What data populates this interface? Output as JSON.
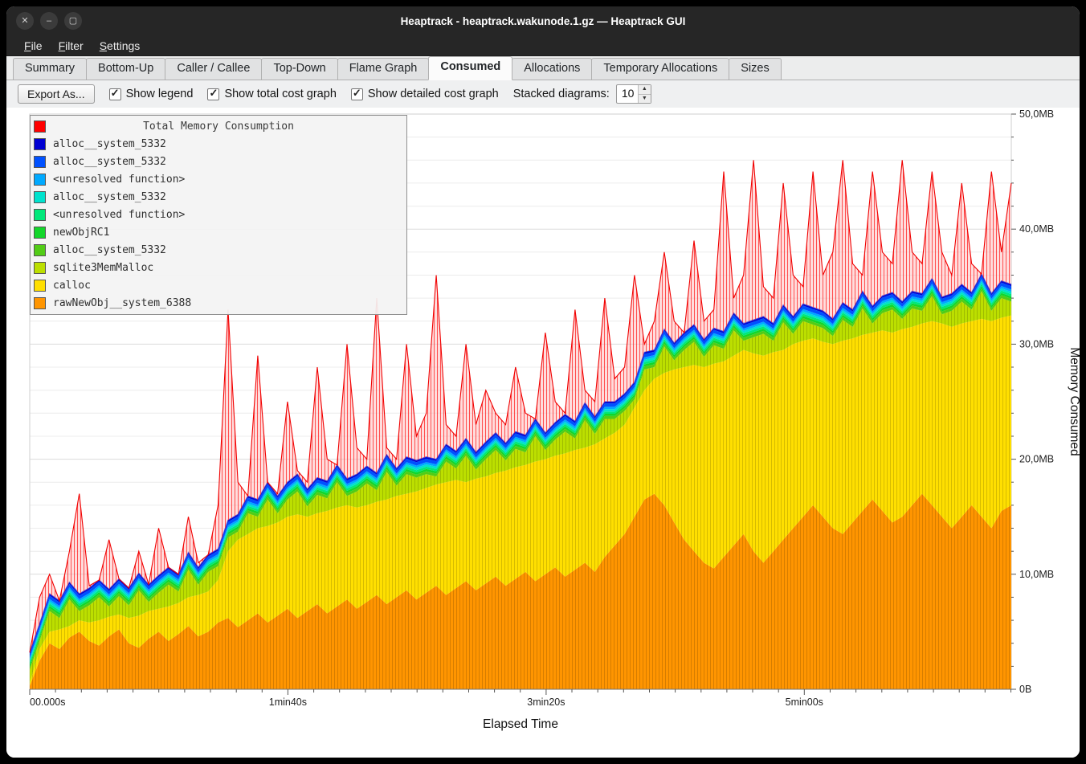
{
  "window": {
    "title": "Heaptrack - heaptrack.wakunode.1.gz — Heaptrack GUI",
    "buttons": [
      {
        "name": "close",
        "glyph": "✕"
      },
      {
        "name": "minimize",
        "glyph": "–"
      },
      {
        "name": "maximize",
        "glyph": "▢"
      }
    ]
  },
  "menu": {
    "items": [
      "File",
      "Filter",
      "Settings"
    ]
  },
  "tabs": {
    "items": [
      "Summary",
      "Bottom-Up",
      "Caller / Callee",
      "Top-Down",
      "Flame Graph",
      "Consumed",
      "Allocations",
      "Temporary Allocations",
      "Sizes"
    ],
    "active": "Consumed"
  },
  "toolbar": {
    "export_button": "Export As...",
    "checkboxes": [
      {
        "label": "Show legend",
        "checked": true
      },
      {
        "label": "Show total cost graph",
        "checked": true
      },
      {
        "label": "Show detailed cost graph",
        "checked": true
      }
    ],
    "check_glyph": "✓",
    "stacked_label": "Stacked diagrams:",
    "stacked_value": "10",
    "spin_up_glyph": "▲",
    "spin_down_glyph": "▼"
  },
  "legend": {
    "title": "Total Memory Consumption",
    "title_color": "#ff0000",
    "items": [
      {
        "label": "alloc__system_5332",
        "color": "#0000d2"
      },
      {
        "label": "alloc__system_5332",
        "color": "#0051ff"
      },
      {
        "label": "<unresolved function>",
        "color": "#00a9ff"
      },
      {
        "label": "alloc__system_5332",
        "color": "#00e2cd"
      },
      {
        "label": "<unresolved function>",
        "color": "#00e87a"
      },
      {
        "label": "newObjRC1",
        "color": "#12d62a"
      },
      {
        "label": "alloc__system_5332",
        "color": "#52cc16"
      },
      {
        "label": "sqlite3MemMalloc",
        "color": "#bcdf00"
      },
      {
        "label": "calloc",
        "color": "#ffdf00"
      },
      {
        "label": "rawNewObj__system_6388",
        "color": "#ff9500"
      }
    ]
  },
  "axes": {
    "y_label": "Memory Consumed",
    "x_label": "Elapsed Time"
  },
  "chart_data": {
    "type": "area",
    "title": "Total Memory Consumption",
    "xlabel": "Elapsed Time",
    "ylabel": "Memory Consumed",
    "x_unit": "seconds",
    "x_start": 0,
    "x_interval_s": 3.84,
    "x_max_s": 380,
    "ylim": [
      0,
      50
    ],
    "grid": true,
    "legend_position": "top-left",
    "x_tick_positions_s": [
      0,
      100,
      200,
      300
    ],
    "x_tick_labels": [
      "00.000s",
      "1min40s",
      "3min20s",
      "5min00s"
    ],
    "y_tick_positions_mb": [
      0,
      10,
      20,
      30,
      40,
      50
    ],
    "y_tick_labels": [
      "0B",
      "10,0MB",
      "20,0MB",
      "30,0MB",
      "40,0MB",
      "50,0MB"
    ],
    "stacking": "cumulative_tops_mb",
    "series": [
      {
        "name": "rawNewObj__system_6388",
        "color": "#ff9500",
        "hatch": true,
        "tops": [
          0.3,
          2.5,
          4.0,
          3.5,
          4.5,
          5.0,
          4.2,
          3.8,
          4.6,
          5.2,
          4.0,
          3.6,
          4.4,
          5.0,
          4.2,
          4.8,
          5.5,
          4.6,
          5.0,
          5.8,
          6.2,
          5.4,
          6.0,
          6.6,
          5.8,
          6.4,
          7.0,
          6.2,
          6.8,
          7.4,
          6.6,
          7.2,
          7.8,
          7.0,
          7.6,
          8.2,
          7.4,
          8.0,
          8.6,
          7.8,
          8.4,
          9.0,
          8.2,
          8.8,
          9.4,
          8.6,
          9.2,
          9.8,
          9.0,
          9.6,
          10.2,
          9.4,
          10.0,
          10.6,
          9.8,
          10.4,
          11.0,
          10.2,
          11.5,
          12.5,
          13.5,
          15.0,
          16.5,
          17.0,
          16.0,
          14.5,
          13.0,
          12.0,
          11.0,
          10.5,
          11.5,
          12.5,
          13.5,
          12.0,
          11.0,
          12.0,
          13.0,
          14.0,
          15.0,
          16.0,
          15.0,
          14.0,
          13.5,
          14.5,
          15.5,
          16.5,
          15.5,
          14.5,
          15.0,
          16.0,
          17.0,
          16.0,
          15.0,
          14.0,
          15.0,
          16.0,
          15.0,
          14.0,
          15.5,
          16.0
        ]
      },
      {
        "name": "calloc",
        "color": "#ffdf00",
        "hatch": true,
        "tops": [
          0.5,
          3.5,
          5.0,
          5.2,
          5.5,
          6.0,
          5.8,
          6.0,
          6.3,
          6.5,
          6.2,
          6.4,
          6.8,
          7.0,
          7.2,
          7.5,
          8.0,
          8.2,
          8.5,
          9.5,
          12.0,
          13.0,
          13.5,
          14.0,
          14.2,
          14.5,
          15.0,
          15.2,
          15.0,
          15.3,
          15.5,
          15.8,
          16.0,
          15.8,
          16.0,
          16.3,
          16.5,
          16.8,
          17.0,
          17.2,
          17.5,
          17.8,
          18.0,
          18.2,
          18.0,
          18.3,
          18.5,
          18.8,
          19.0,
          19.3,
          19.5,
          19.8,
          20.0,
          20.3,
          20.5,
          20.8,
          21.0,
          21.3,
          21.8,
          22.3,
          23.0,
          24.5,
          26.0,
          27.0,
          27.5,
          27.8,
          28.0,
          28.2,
          28.0,
          28.3,
          28.5,
          29.0,
          29.5,
          29.2,
          29.0,
          29.3,
          29.5,
          30.0,
          30.3,
          30.5,
          30.2,
          30.0,
          30.3,
          30.5,
          30.8,
          31.0,
          31.2,
          31.0,
          31.3,
          31.5,
          31.8,
          32.0,
          31.8,
          31.5,
          31.8,
          32.0,
          32.2,
          32.0,
          32.3,
          32.5
        ]
      },
      {
        "name": "sqlite3MemMalloc",
        "color": "#bcdf00",
        "hatch": true,
        "offsets": [
          1.2,
          0.7,
          1.8,
          1.0,
          2.3,
          0.8,
          1.5,
          2.0,
          0.9,
          1.6,
          1.1,
          2.2,
          0.8,
          1.4,
          1.9,
          1.0,
          2.4,
          0.9,
          1.7,
          1.2,
          1.2,
          0.7,
          1.8,
          1.0,
          2.3,
          0.8,
          1.5,
          2.0,
          0.9,
          1.6,
          1.1,
          2.2,
          0.8,
          1.4,
          1.9,
          1.0,
          2.4,
          0.9,
          1.7,
          1.2,
          1.2,
          0.7,
          1.8,
          1.0,
          2.3,
          0.8,
          1.5,
          2.0,
          0.9,
          1.6,
          1.1,
          2.2,
          0.8,
          1.4,
          1.9,
          1.0,
          2.4,
          0.9,
          1.7,
          1.2,
          1.2,
          0.7,
          1.8,
          1.0,
          2.3,
          0.8,
          1.5,
          2.0,
          0.9,
          1.6,
          1.1,
          2.2,
          0.8,
          1.4,
          1.9,
          1.0,
          2.4,
          0.9,
          1.7,
          1.2,
          1.2,
          0.7,
          1.8,
          1.0,
          2.3,
          0.8,
          1.5,
          2.0,
          0.9,
          1.6,
          1.1,
          2.2,
          0.8,
          1.4,
          1.9,
          1.0,
          2.4,
          0.9,
          1.7,
          1.2
        ]
      },
      {
        "name": "alloc__system_5332",
        "color": "#52cc16",
        "offset": 0.25
      },
      {
        "name": "newObjRC1",
        "color": "#12d62a",
        "offset": 0.2
      },
      {
        "name": "<unresolved function>",
        "color": "#00e87a",
        "offset": 0.2
      },
      {
        "name": "alloc__system_5332",
        "color": "#00e2cd",
        "offset": 0.2
      },
      {
        "name": "<unresolved function>",
        "color": "#00a9ff",
        "offset": 0.2
      },
      {
        "name": "alloc__system_5332",
        "color": "#0051ff",
        "offset": 0.3
      },
      {
        "name": "alloc__system_5332",
        "color": "#0000d2",
        "offset": 0.15
      }
    ],
    "total": {
      "name": "Total Memory Consumption",
      "color": "#ff0000",
      "tops": [
        1,
        8,
        10,
        7,
        12,
        17,
        9,
        8,
        13,
        9,
        8,
        12,
        9,
        14,
        10,
        9,
        15,
        11,
        10,
        16,
        33,
        18,
        16,
        29,
        18,
        17,
        25,
        19,
        18,
        28,
        20,
        19,
        30,
        21,
        20,
        34,
        21,
        20,
        30,
        22,
        24,
        36,
        23,
        22,
        30,
        23,
        26,
        24,
        23,
        28,
        24,
        23,
        31,
        25,
        24,
        33,
        26,
        25,
        34,
        27,
        28,
        36,
        30,
        32,
        38,
        32,
        31,
        39,
        32,
        33,
        45,
        34,
        36,
        46,
        35,
        34,
        44,
        36,
        35,
        45,
        36,
        38,
        46,
        37,
        36,
        45,
        38,
        37,
        46,
        38,
        37,
        45,
        38,
        36,
        44,
        37,
        36,
        45,
        38,
        44
      ]
    }
  }
}
